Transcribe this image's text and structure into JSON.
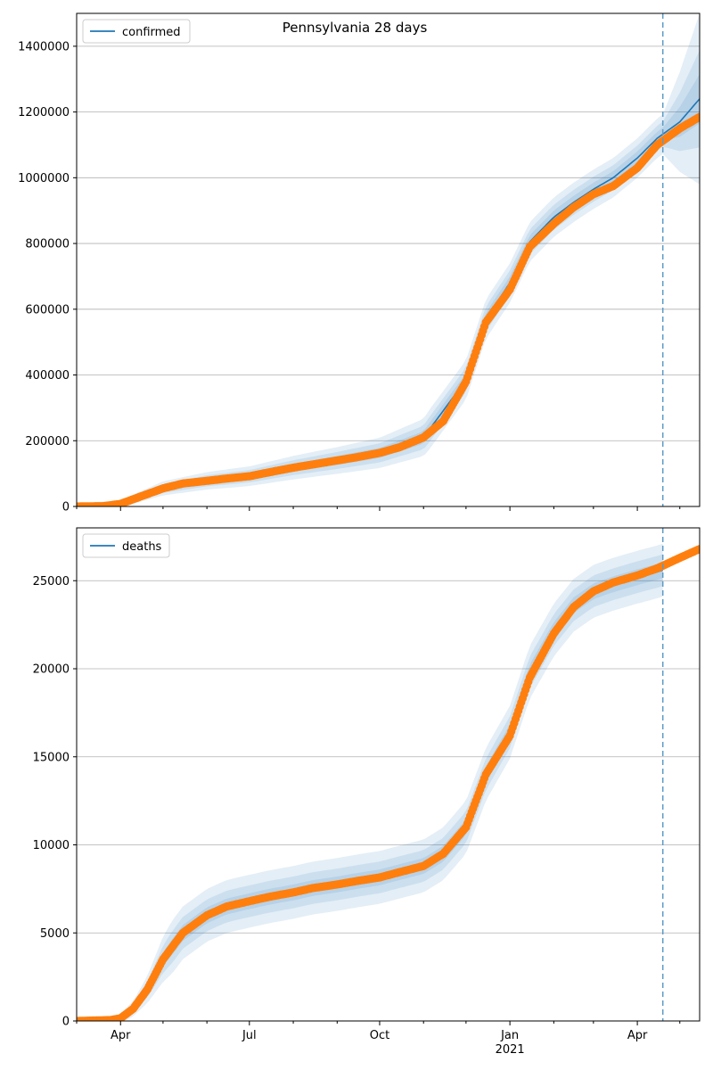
{
  "figure_title": "Pennsylvania 28 days",
  "colors": {
    "model_line": "#1f77b4",
    "observed_points": "#ff7f0e",
    "band_fill": "#1f77b4",
    "forecast_marker": "#5b9bc7",
    "grid": "#b0b0b0"
  },
  "x_axis": {
    "start": "2020-03-01",
    "end": "2021-05-15",
    "major_ticks": [
      {
        "date": "2020-04-01",
        "label": "Apr",
        "sublabel": ""
      },
      {
        "date": "2020-07-01",
        "label": "Jul",
        "sublabel": ""
      },
      {
        "date": "2020-10-01",
        "label": "Oct",
        "sublabel": ""
      },
      {
        "date": "2021-01-01",
        "label": "Jan",
        "sublabel": "2021"
      },
      {
        "date": "2021-04-01",
        "label": "Apr",
        "sublabel": ""
      }
    ],
    "minor_tick_dates": [
      "2020-03-01",
      "2020-05-01",
      "2020-06-01",
      "2020-08-01",
      "2020-09-01",
      "2020-11-01",
      "2020-12-01",
      "2021-02-01",
      "2021-03-01",
      "2021-05-01"
    ]
  },
  "forecast_start": "2021-04-19",
  "chart_data": [
    {
      "type": "line",
      "legend": [
        "confirmed"
      ],
      "legend_position": "upper-left",
      "grid": "horizontal",
      "ylim": [
        0,
        1500000
      ],
      "yticks": [
        0,
        200000,
        400000,
        600000,
        800000,
        1000000,
        1200000,
        1400000
      ],
      "ytick_labels": [
        "0",
        "200000",
        "400000",
        "600000",
        "800000",
        "1000000",
        "1200000",
        "1400000"
      ],
      "observed": {
        "x": [
          "2020-03-01",
          "2020-03-20",
          "2020-04-01",
          "2020-04-15",
          "2020-05-01",
          "2020-05-15",
          "2020-06-01",
          "2020-06-15",
          "2020-07-01",
          "2020-07-15",
          "2020-08-01",
          "2020-08-15",
          "2020-09-01",
          "2020-09-15",
          "2020-10-01",
          "2020-10-15",
          "2020-11-01",
          "2020-11-15",
          "2020-12-01",
          "2020-12-15",
          "2021-01-01",
          "2021-01-15",
          "2021-02-01",
          "2021-02-15",
          "2021-03-01",
          "2021-03-15",
          "2021-04-01",
          "2021-04-15",
          "2021-05-01",
          "2021-05-15"
        ],
        "y": [
          0,
          1000,
          8000,
          30000,
          55000,
          70000,
          78000,
          85000,
          92000,
          104000,
          118000,
          128000,
          140000,
          150000,
          163000,
          180000,
          210000,
          260000,
          380000,
          560000,
          660000,
          790000,
          860000,
          910000,
          950000,
          975000,
          1030000,
          1100000,
          1150000,
          1185000
        ]
      },
      "model": {
        "x": [
          "2020-03-01",
          "2020-04-01",
          "2020-05-01",
          "2020-06-01",
          "2020-07-01",
          "2020-08-01",
          "2020-09-01",
          "2020-10-01",
          "2020-11-01",
          "2020-12-01",
          "2020-12-15",
          "2021-01-01",
          "2021-01-15",
          "2021-02-01",
          "2021-02-15",
          "2021-03-01",
          "2021-03-15",
          "2021-04-01",
          "2021-04-15",
          "2021-05-01",
          "2021-05-15"
        ],
        "y": [
          0,
          8000,
          55000,
          78000,
          92000,
          118000,
          140000,
          163000,
          210000,
          385000,
          570000,
          680000,
          805000,
          880000,
          925000,
          965000,
          1000000,
          1060000,
          1120000,
          1170000,
          1240000
        ]
      },
      "bands": [
        {
          "offset": 60000,
          "growth": 200000
        },
        {
          "offset": 38000,
          "growth": 110000
        },
        {
          "offset": 20000,
          "growth": 55000
        }
      ]
    },
    {
      "type": "line",
      "legend": [
        "deaths"
      ],
      "legend_position": "upper-left",
      "grid": "horizontal",
      "ylim": [
        0,
        28000
      ],
      "yticks": [
        0,
        5000,
        10000,
        15000,
        20000,
        25000
      ],
      "ytick_labels": [
        "0",
        "5000",
        "10000",
        "15000",
        "20000",
        "25000"
      ],
      "observed": {
        "x": [
          "2020-03-01",
          "2020-03-25",
          "2020-04-01",
          "2020-04-10",
          "2020-04-20",
          "2020-05-01",
          "2020-05-15",
          "2020-06-01",
          "2020-06-15",
          "2020-07-01",
          "2020-07-15",
          "2020-08-01",
          "2020-08-15",
          "2020-09-01",
          "2020-09-15",
          "2020-10-01",
          "2020-10-15",
          "2020-11-01",
          "2020-11-15",
          "2020-12-01",
          "2020-12-15",
          "2021-01-01",
          "2021-01-15",
          "2021-02-01",
          "2021-02-15",
          "2021-03-01",
          "2021-03-15",
          "2021-04-01",
          "2021-04-15",
          "2021-05-01",
          "2021-05-15"
        ],
        "y": [
          0,
          50,
          150,
          700,
          1800,
          3500,
          5000,
          6000,
          6500,
          6800,
          7050,
          7300,
          7550,
          7750,
          7950,
          8150,
          8450,
          8800,
          9500,
          11000,
          14000,
          16200,
          19500,
          22000,
          23500,
          24400,
          24900,
          25300,
          25700,
          26300,
          26800
        ]
      },
      "model": {
        "x": [
          "2020-03-01",
          "2020-03-25",
          "2020-04-01",
          "2020-04-10",
          "2020-04-20",
          "2020-05-01",
          "2020-05-15",
          "2020-06-01",
          "2020-06-15",
          "2020-07-01",
          "2020-07-15",
          "2020-08-01",
          "2020-08-15",
          "2020-09-01",
          "2020-09-15",
          "2020-10-01",
          "2020-10-15",
          "2020-11-01",
          "2020-11-15",
          "2020-12-01",
          "2020-12-15",
          "2021-01-01",
          "2021-01-15",
          "2021-02-01",
          "2021-02-15",
          "2021-03-01",
          "2021-03-15",
          "2021-04-01",
          "2021-04-15",
          "2021-04-19"
        ],
        "y": [
          0,
          50,
          150,
          700,
          1800,
          3500,
          5000,
          6000,
          6500,
          6800,
          7050,
          7300,
          7550,
          7750,
          7950,
          8150,
          8450,
          8800,
          9500,
          11000,
          14000,
          16400,
          19800,
          22200,
          23600,
          24400,
          24800,
          25200,
          25500,
          25600
        ]
      },
      "bands": [
        {
          "offset": 1500,
          "growth": 400
        },
        {
          "offset": 900,
          "growth": 250
        },
        {
          "offset": 450,
          "growth": 120
        }
      ]
    }
  ]
}
